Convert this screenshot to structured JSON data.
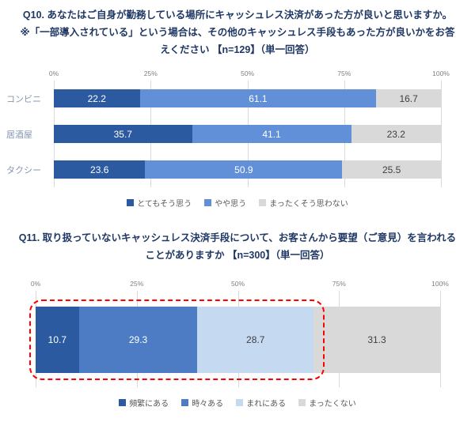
{
  "page": {
    "background": "#ffffff",
    "title_color": "#1f3864"
  },
  "chart_data": [
    {
      "type": "bar",
      "orientation": "horizontal",
      "stacked": true,
      "title_lines": [
        "Q10. あなたはご自身が勤務している場所にキャッシュレス決済があった方が良いと思いますか。",
        "※「一部導入されている」という場合は、その他のキャッシュレス手段もあった方が良いかをお答",
        "えください 【n=129】（単一回答）"
      ],
      "n": 129,
      "categories": [
        "コンビニ",
        "居酒屋",
        "タクシー"
      ],
      "series": [
        {
          "name": "とてもそう思う",
          "color": "#2c5aa0",
          "label_color": "#ffffff",
          "values": [
            22.2,
            35.7,
            23.6
          ]
        },
        {
          "name": "やや思う",
          "color": "#6290d8",
          "label_color": "#ffffff",
          "values": [
            61.1,
            41.1,
            50.9
          ]
        },
        {
          "name": "まったくそう思わない",
          "color": "#d9d9d9",
          "label_color": "#404040",
          "values": [
            16.7,
            23.2,
            25.5
          ]
        }
      ],
      "x_ticks": [
        "0%",
        "25%",
        "50%",
        "75%",
        "100%"
      ],
      "xlim": [
        0,
        100
      ],
      "grid": true,
      "legend_position": "bottom"
    },
    {
      "type": "bar",
      "orientation": "horizontal",
      "stacked": true,
      "title_lines": [
        "Q11. 取り扱っていないキャッシュレス決済手段について、お客さんから要望（ご意見）を言われる",
        "ことがありますか 【n=300】（単一回答）"
      ],
      "n": 300,
      "categories": [
        ""
      ],
      "series": [
        {
          "name": "頻繁にある",
          "color": "#2c5aa0",
          "label_color": "#ffffff",
          "values": [
            10.7
          ]
        },
        {
          "name": "時々ある",
          "color": "#4d7cc4",
          "label_color": "#ffffff",
          "values": [
            29.3
          ]
        },
        {
          "name": "まれにある",
          "color": "#c5d9f1",
          "label_color": "#404040",
          "values": [
            28.7
          ]
        },
        {
          "name": "まったくない",
          "color": "#d9d9d9",
          "label_color": "#404040",
          "values": [
            31.3
          ]
        }
      ],
      "x_ticks": [
        "0%",
        "25%",
        "50%",
        "75%",
        "100%"
      ],
      "xlim": [
        0,
        100
      ],
      "grid": true,
      "legend_position": "bottom",
      "highlight": {
        "type": "dashed-box",
        "color": "#ff0000",
        "segments": 3
      }
    }
  ]
}
